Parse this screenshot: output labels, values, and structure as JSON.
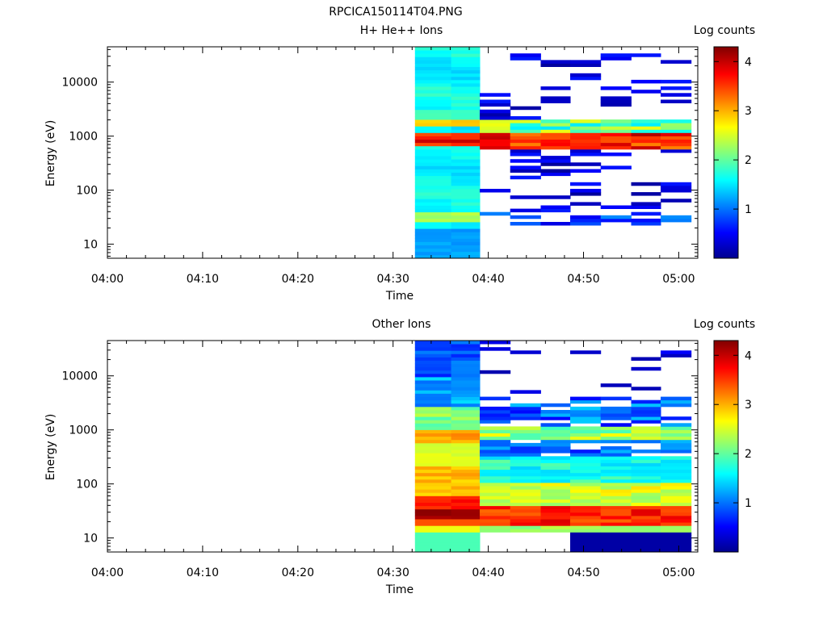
{
  "figure": {
    "title": "RPCICA150114T04.PNG"
  },
  "chart_data": [
    {
      "type": "heatmap",
      "title": "H+ He++ Ions",
      "xlabel": "Time",
      "ylabel": "Energy (eV)",
      "colorbar_label": "Log counts",
      "colorbar_ticks": [
        "1",
        "2",
        "3",
        "4"
      ],
      "colorbar_range": [
        0,
        4.3
      ],
      "x_ticks": [
        "04:00",
        "04:10",
        "04:20",
        "04:30",
        "04:40",
        "04:50",
        "05:00"
      ],
      "x_range_minutes": [
        0,
        62
      ],
      "y_scale": "log",
      "y_range": [
        5.5,
        45000
      ],
      "y_ticks": [
        "10",
        "100",
        "1000",
        "10000"
      ],
      "colormap": [
        "#00008f",
        "#0000ff",
        "#00ffff",
        "#ffff00",
        "#ff0000",
        "#800000"
      ],
      "grid": false,
      "time_bins": [
        {
          "start": 32.3,
          "end": 36.1,
          "type": "continuous",
          "profile": "hp_early"
        },
        {
          "start": 36.1,
          "end": 39.1,
          "type": "continuous",
          "profile": "hp_early"
        },
        {
          "start": 39.1,
          "end": 42.3,
          "type": "sparse",
          "profile": "hp_sparse"
        },
        {
          "start": 42.3,
          "end": 45.5,
          "type": "sparse",
          "profile": "hp_sparse"
        },
        {
          "start": 45.5,
          "end": 48.6,
          "type": "sparse",
          "profile": "hp_sparse"
        },
        {
          "start": 48.6,
          "end": 51.8,
          "type": "sparse",
          "profile": "hp_sparse"
        },
        {
          "start": 51.8,
          "end": 55.0,
          "type": "sparse",
          "profile": "hp_sparse"
        },
        {
          "start": 55.0,
          "end": 58.1,
          "type": "sparse",
          "profile": "hp_sparse"
        },
        {
          "start": 58.1,
          "end": 61.3,
          "type": "sparse",
          "profile": "hp_sparse"
        }
      ]
    },
    {
      "type": "heatmap",
      "title": "Other Ions",
      "xlabel": "Time",
      "ylabel": "Energy (eV)",
      "colorbar_label": "Log counts",
      "colorbar_ticks": [
        "1",
        "2",
        "3",
        "4"
      ],
      "colorbar_range": [
        0,
        4.3
      ],
      "x_ticks": [
        "04:00",
        "04:10",
        "04:20",
        "04:30",
        "04:40",
        "04:50",
        "05:00"
      ],
      "x_range_minutes": [
        0,
        62
      ],
      "y_scale": "log",
      "y_range": [
        5.5,
        45000
      ],
      "y_ticks": [
        "10",
        "100",
        "1000",
        "10000"
      ],
      "colormap": [
        "#00008f",
        "#0000ff",
        "#00ffff",
        "#ffff00",
        "#ff0000",
        "#800000"
      ],
      "grid": false,
      "time_bins": [
        {
          "start": 32.3,
          "end": 36.1,
          "type": "continuous",
          "profile": "ot_early"
        },
        {
          "start": 36.1,
          "end": 39.1,
          "type": "continuous",
          "profile": "ot_early"
        },
        {
          "start": 39.1,
          "end": 42.3,
          "type": "sparse",
          "profile": "ot_sparse"
        },
        {
          "start": 42.3,
          "end": 45.5,
          "type": "sparse",
          "profile": "ot_sparse"
        },
        {
          "start": 45.5,
          "end": 48.6,
          "type": "sparse",
          "profile": "ot_sparse"
        },
        {
          "start": 48.6,
          "end": 51.8,
          "type": "sparse",
          "profile": "ot_sparse"
        },
        {
          "start": 51.8,
          "end": 55.0,
          "type": "sparse",
          "profile": "ot_sparse"
        },
        {
          "start": 55.0,
          "end": 58.1,
          "type": "sparse",
          "profile": "ot_sparse"
        },
        {
          "start": 58.1,
          "end": 61.3,
          "type": "sparse",
          "profile": "ot_sparse"
        }
      ]
    }
  ]
}
